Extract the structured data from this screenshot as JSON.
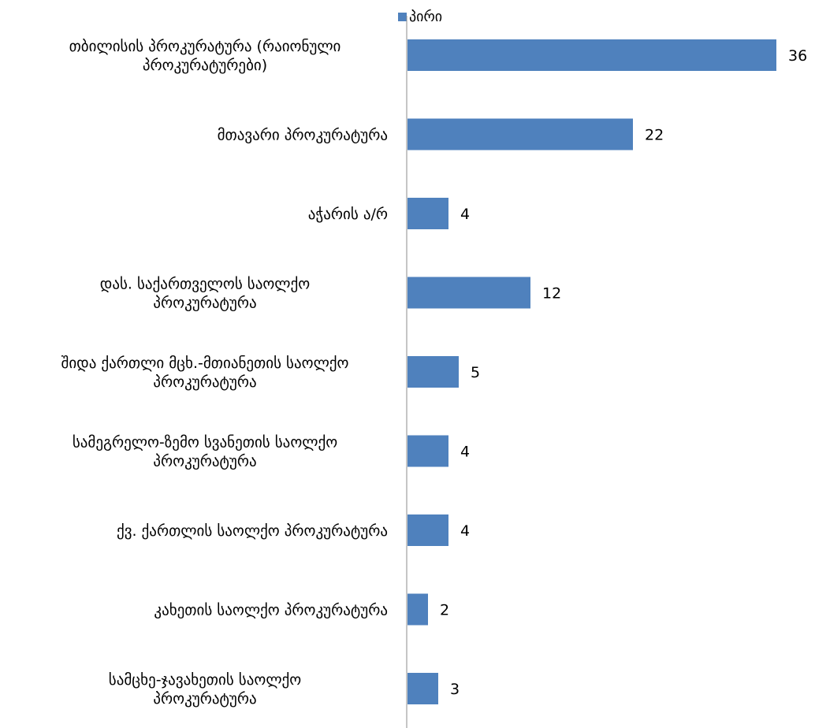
{
  "chart_data": {
    "type": "bar",
    "orientation": "horizontal",
    "categories": [
      [
        "თბილისის პროკურატურა (რაიონული",
        "პროკურატურები)"
      ],
      [
        "მთავარი პროკურატურა"
      ],
      [
        "აჭარის ა/რ"
      ],
      [
        "დას. საქართველოს საოლქო",
        "პროკურატურა"
      ],
      [
        "შიდა ქართლი მცხ.-მთიანეთის საოლქო",
        "პროკურატურა"
      ],
      [
        "სამეგრელო-ზემო სვანეთის საოლქო",
        "პროკურატურა"
      ],
      [
        "ქვ. ქართლის საოლქო პროკურატურა"
      ],
      [
        "კახეთის საოლქო პროკურატურა"
      ],
      [
        "სამცხე-ჯავახეთის საოლქო",
        "პროკურატურა"
      ]
    ],
    "series": [
      {
        "name": "პირი",
        "values": [
          36,
          22,
          4,
          12,
          5,
          4,
          4,
          2,
          3
        ],
        "color": "#4f81bd"
      }
    ],
    "value_labels": [
      "36",
      "22",
      "4",
      "12",
      "5",
      "4",
      "4",
      "2",
      "3"
    ],
    "xlim": [
      0,
      36
    ],
    "grid": false,
    "legend_position": "top"
  }
}
